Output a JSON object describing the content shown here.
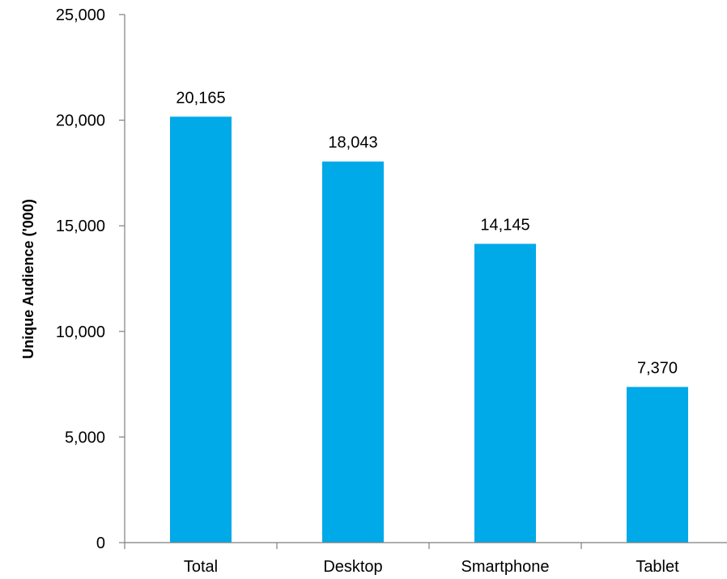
{
  "chart_data": {
    "type": "bar",
    "title": "",
    "xlabel": "",
    "ylabel": "Unique Audience ('000)",
    "categories": [
      "Total",
      "Desktop",
      "Smartphone",
      "Tablet"
    ],
    "values": [
      20165,
      18043,
      14145,
      7370
    ],
    "data_labels": [
      "20,165",
      "18,043",
      "14,145",
      "7,370"
    ],
    "ylim": [
      0,
      25000
    ],
    "yticks": [
      0,
      5000,
      10000,
      15000,
      20000,
      25000
    ],
    "ytick_labels": [
      "0",
      "5,000",
      "10,000",
      "15,000",
      "20,000",
      "25,000"
    ],
    "grid": false,
    "legend": "none",
    "bar_color": "#00a9e8",
    "axis_color": "#7f7f7f"
  }
}
